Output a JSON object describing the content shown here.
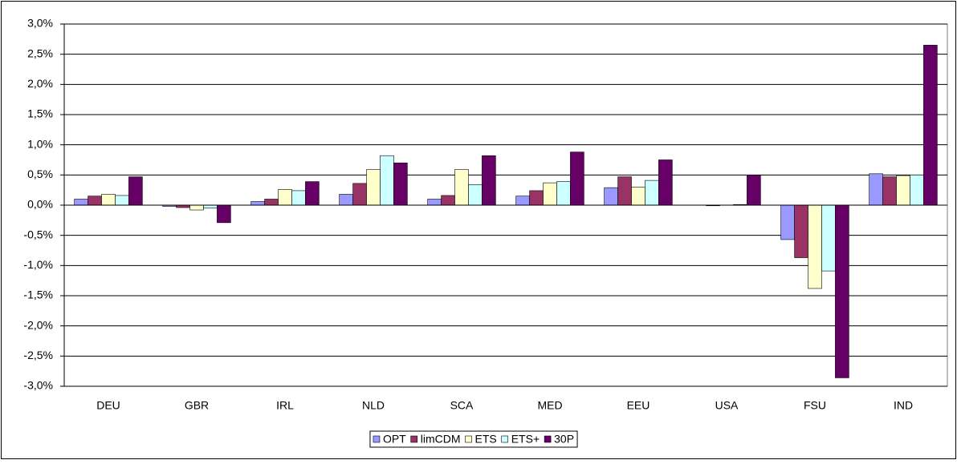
{
  "chart_data": {
    "type": "bar",
    "categories": [
      "DEU",
      "GBR",
      "IRL",
      "NLD",
      "SCA",
      "MED",
      "EEU",
      "USA",
      "FSU",
      "IND"
    ],
    "series": [
      {
        "name": "OPT",
        "color": "#9999ff",
        "values": [
          0.1,
          -0.02,
          0.06,
          0.18,
          0.1,
          0.15,
          0.29,
          0,
          -0.57,
          0.52
        ]
      },
      {
        "name": "limCDM",
        "color": "#993366",
        "values": [
          0.15,
          -0.04,
          0.1,
          0.36,
          0.16,
          0.24,
          0.47,
          -0.01,
          -0.87,
          0.47
        ]
      },
      {
        "name": "ETS",
        "color": "#ffffcc",
        "values": [
          0.18,
          -0.08,
          0.26,
          0.59,
          0.59,
          0.37,
          0.3,
          0,
          -1.38,
          0.49
        ]
      },
      {
        "name": "ETS+",
        "color": "#ccffff",
        "values": [
          0.16,
          -0.05,
          0.24,
          0.82,
          0.34,
          0.39,
          0.41,
          0.01,
          -1.09,
          0.5
        ]
      },
      {
        "name": "30P",
        "color": "#660066",
        "values": [
          0.47,
          -0.29,
          0.39,
          0.7,
          0.82,
          0.88,
          0.75,
          0.5,
          -2.86,
          2.65
        ]
      }
    ],
    "ylim": [
      -3,
      3
    ],
    "yticks": [
      {
        "value": -3,
        "label": "-3,0%"
      },
      {
        "value": -2.5,
        "label": "-2,5%"
      },
      {
        "value": -2,
        "label": "-2,0%"
      },
      {
        "value": -1.5,
        "label": "-1,5%"
      },
      {
        "value": -1,
        "label": "-1,0%"
      },
      {
        "value": -0.5,
        "label": "-0,5%"
      },
      {
        "value": 0,
        "label": "0,0%"
      },
      {
        "value": 0.5,
        "label": "0,5%"
      },
      {
        "value": 1,
        "label": "1,0%"
      },
      {
        "value": 1.5,
        "label": "1,5%"
      },
      {
        "value": 2,
        "label": "2,0%"
      },
      {
        "value": 2.5,
        "label": "2,5%"
      },
      {
        "value": 3,
        "label": "3,0%"
      }
    ],
    "grid": true,
    "legend": "bottom"
  }
}
